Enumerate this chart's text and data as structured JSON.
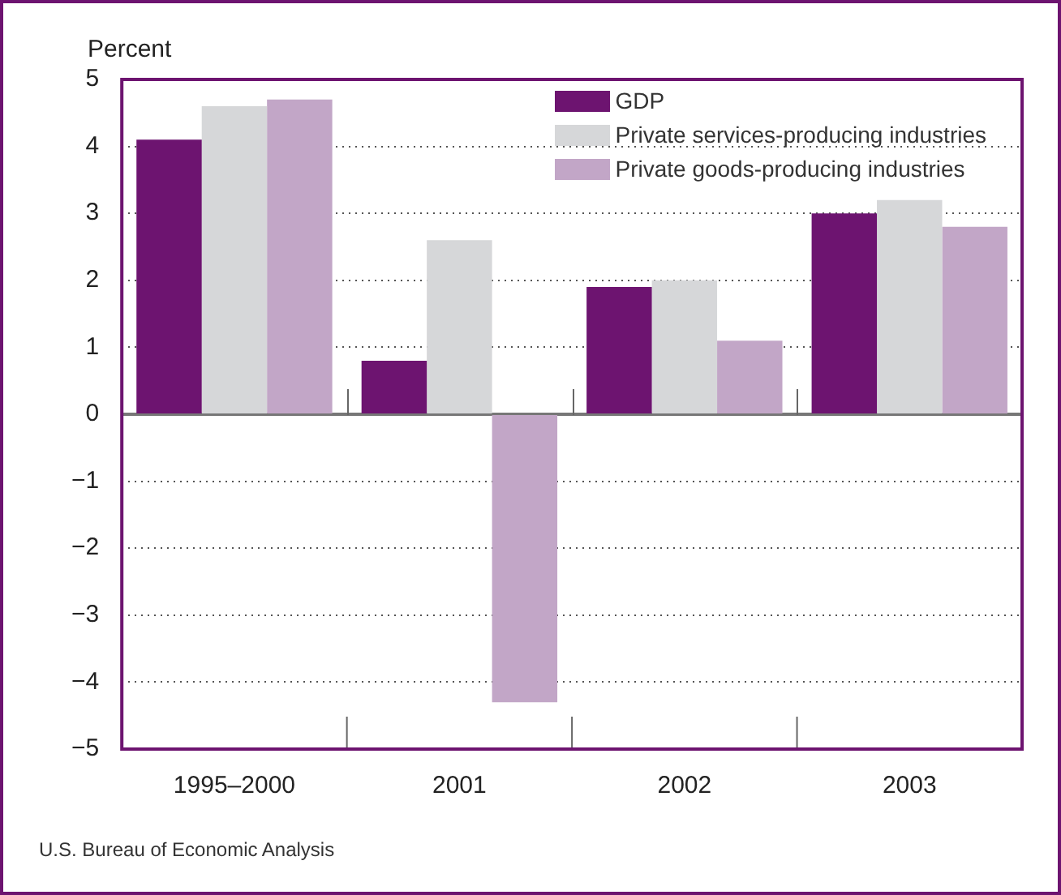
{
  "chart_data": {
    "type": "bar",
    "ylabel": "Percent",
    "categories": [
      "1995–2000",
      "2001",
      "2002",
      "2003"
    ],
    "series": [
      {
        "name": "GDP",
        "color": "#6d1470",
        "values": [
          4.1,
          0.8,
          1.9,
          3.0
        ]
      },
      {
        "name": "Private services-producing industries",
        "color": "#d6d7d9",
        "values": [
          4.6,
          2.6,
          2.0,
          3.2
        ]
      },
      {
        "name": "Private goods-producing industries",
        "color": "#c2a6c7",
        "values": [
          4.7,
          -4.3,
          1.1,
          2.8
        ]
      }
    ],
    "ylim": [
      -5,
      5
    ],
    "yticks": [
      {
        "value": -5,
        "label": "−5"
      },
      {
        "value": -4,
        "label": "−4"
      },
      {
        "value": -3,
        "label": "−3"
      },
      {
        "value": -2,
        "label": "−2"
      },
      {
        "value": -1,
        "label": "−1"
      },
      0,
      1,
      2,
      3,
      4,
      5
    ],
    "grid": "y",
    "legend": "top right",
    "annotations": [
      "U.S. Bureau of Economic Analysis"
    ]
  }
}
